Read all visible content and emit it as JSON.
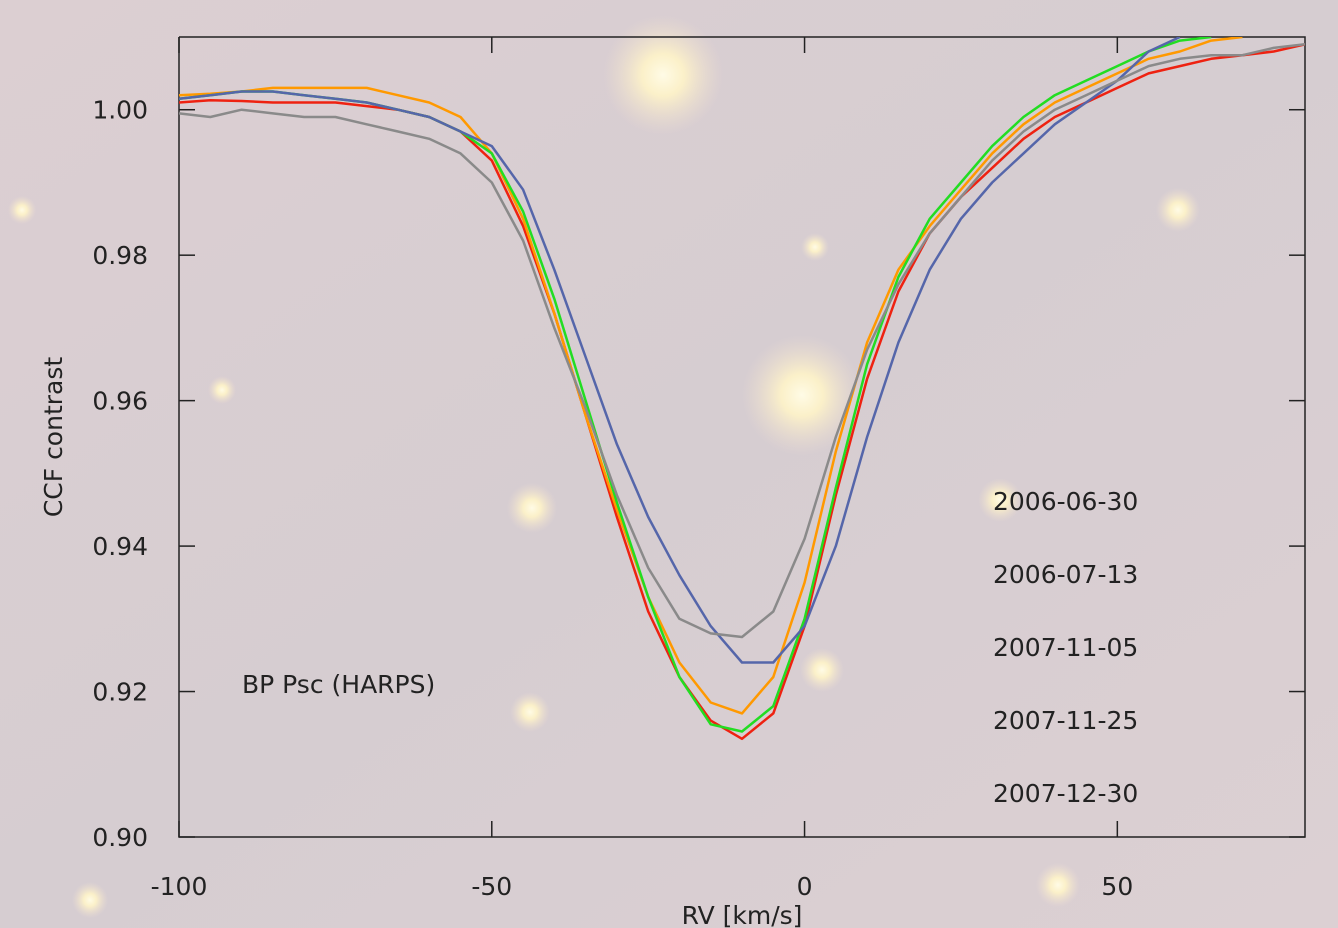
{
  "chart_data": {
    "type": "line",
    "x_label": "RV [km/s]",
    "y_label": "CCF contrast",
    "annotation": "BP Psc  (HARPS)",
    "x": [
      -100,
      -95,
      -90,
      -85,
      -80,
      -75,
      -70,
      -65,
      -60,
      -55,
      -50,
      -45,
      -40,
      -35,
      -30,
      -25,
      -20,
      -15,
      -10,
      -5,
      0,
      5,
      10,
      15,
      20,
      25,
      30,
      35,
      40,
      45,
      50,
      55,
      60,
      65,
      70,
      75,
      80
    ],
    "series": [
      {
        "name": "2006-06-30",
        "color": "#ee2211",
        "values": [
          1.001,
          1.0013,
          1.0012,
          1.001,
          1.001,
          1.001,
          1.0005,
          1.0,
          0.999,
          0.997,
          0.993,
          0.984,
          0.972,
          0.958,
          0.944,
          0.931,
          0.922,
          0.916,
          0.9135,
          0.917,
          0.929,
          0.947,
          0.963,
          0.975,
          0.983,
          0.988,
          0.992,
          0.996,
          0.999,
          1.001,
          1.003,
          1.005,
          1.006,
          1.007,
          1.0075,
          1.008,
          1.009
        ]
      },
      {
        "name": "2006-07-13",
        "color": "#ff9900",
        "values": [
          1.002,
          1.0022,
          1.0025,
          1.003,
          1.003,
          1.003,
          1.003,
          1.002,
          1.001,
          0.999,
          0.994,
          0.985,
          0.972,
          0.958,
          0.945,
          0.933,
          0.924,
          0.9185,
          0.917,
          0.922,
          0.935,
          0.953,
          0.968,
          0.978,
          0.984,
          0.989,
          0.994,
          0.998,
          1.001,
          1.003,
          1.005,
          1.007,
          1.008,
          1.0095,
          1.01,
          null,
          null
        ]
      },
      {
        "name": "2007-11-05",
        "color": "#22dd22",
        "values": [
          1.0015,
          1.002,
          1.0025,
          1.0025,
          1.002,
          1.0015,
          1.001,
          1.0,
          0.999,
          0.997,
          0.994,
          0.986,
          0.974,
          0.96,
          0.946,
          0.933,
          0.922,
          0.9155,
          0.9145,
          0.918,
          0.93,
          0.948,
          0.965,
          0.977,
          0.985,
          0.99,
          0.995,
          0.999,
          1.002,
          1.004,
          1.006,
          1.008,
          1.0095,
          1.01,
          null,
          null,
          null
        ]
      },
      {
        "name": "2007-11-25",
        "color": "#5566aa",
        "values": [
          1.0015,
          1.002,
          1.0025,
          1.0025,
          1.002,
          1.0015,
          1.001,
          1.0,
          0.999,
          0.997,
          0.995,
          0.989,
          0.978,
          0.966,
          0.954,
          0.944,
          0.936,
          0.929,
          0.924,
          0.924,
          0.929,
          0.94,
          0.955,
          0.968,
          0.978,
          0.985,
          0.99,
          0.994,
          0.998,
          1.001,
          1.004,
          1.008,
          1.01,
          null,
          null,
          null,
          null
        ]
      },
      {
        "name": "2007-12-30",
        "color": "#8a8a8a",
        "values": [
          0.9995,
          0.999,
          1.0,
          0.9995,
          0.999,
          0.999,
          0.998,
          0.997,
          0.996,
          0.994,
          0.99,
          0.982,
          0.97,
          0.959,
          0.947,
          0.937,
          0.93,
          0.928,
          0.9275,
          0.931,
          0.941,
          0.955,
          0.967,
          0.976,
          0.983,
          0.988,
          0.993,
          0.997,
          1.0,
          1.002,
          1.004,
          1.006,
          1.007,
          1.0075,
          1.0075,
          1.0085,
          1.009
        ]
      }
    ],
    "xlim": [
      -100,
      80
    ],
    "ylim": [
      0.9,
      1.01
    ],
    "xticks": [
      -100,
      -50,
      0,
      50
    ],
    "yticks": [
      {
        "value": 0.9,
        "label": "0.90"
      },
      0.92,
      0.94,
      0.96,
      0.98,
      {
        "value": 1.0,
        "label": "1.00"
      }
    ]
  }
}
